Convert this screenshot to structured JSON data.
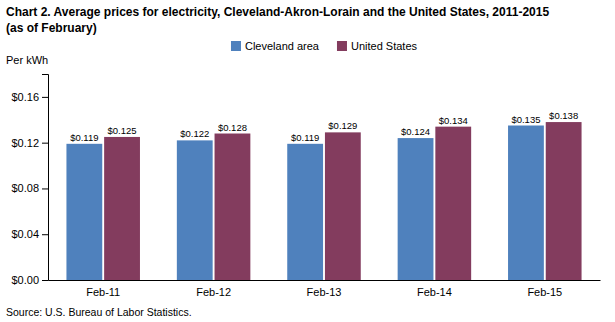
{
  "chart_data": {
    "type": "bar",
    "title": "Chart 2. Average prices for electricity, Cleveland-Akron-Lorain and the United States, 2011-2015",
    "subtitle": "(as of February)",
    "y_label": "Per kWh",
    "annotations": [
      "Source: U.S. Bureau of Labor Statistics."
    ],
    "categories": [
      "Feb-11",
      "Feb-12",
      "Feb-13",
      "Feb-14",
      "Feb-15"
    ],
    "series": [
      {
        "name": "Cleveland area",
        "color": "#4F81BD",
        "values": [
          0.119,
          0.122,
          0.119,
          0.124,
          0.135
        ],
        "value_labels": [
          "$0.119",
          "$0.122",
          "$0.119",
          "$0.124",
          "$0.135"
        ]
      },
      {
        "name": "United States",
        "color": "#833C5E",
        "values": [
          0.125,
          0.128,
          0.129,
          0.134,
          0.138
        ],
        "value_labels": [
          "$0.125",
          "$0.128",
          "$0.129",
          "$0.134",
          "$0.138"
        ]
      }
    ],
    "ylim": [
      0,
      0.18
    ],
    "yticks": [
      {
        "value": 0.0,
        "label": "$0.00"
      },
      {
        "value": 0.04,
        "label": "$0.04"
      },
      {
        "value": 0.08,
        "label": "$0.08"
      },
      {
        "value": 0.12,
        "label": "$0.12"
      },
      {
        "value": 0.16,
        "label": "$0.16"
      }
    ],
    "data_labels": true,
    "legend": "top",
    "grid": false
  }
}
